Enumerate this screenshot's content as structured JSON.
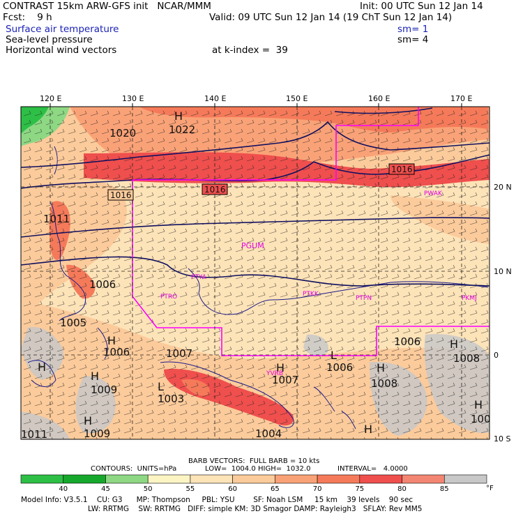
{
  "header": {
    "line1_left": "CONTRAST 15km ARW-GFS init   NCAR/MMM",
    "line1_right": "Init: 00 UTC Sun 12 Jan 14",
    "line2_left": "Fcst:    9 h",
    "line2_right": "Valid: 09 UTC Sun 12 Jan 14 (19 ChT Sun 12 Jan 14)",
    "field1": "Surface air temperature",
    "field1_sm": "sm= 1",
    "field2": "Sea-level pressure",
    "field2_sm": "sm= 4",
    "field3": "Horizontal wind vectors",
    "field3_level": "at k-index =  39"
  },
  "map": {
    "lon_labels": [
      "120 E",
      "130 E",
      "140 E",
      "150 E",
      "160 E",
      "170 E"
    ],
    "lat_labels": [
      "20 N",
      "10 N",
      "0",
      "10 S"
    ],
    "pressure_labels": [
      "1020",
      "1022",
      "1016",
      "1016",
      "1016",
      "1011",
      "1006",
      "1005",
      "1006",
      "1007",
      "1009",
      "1006",
      "1007",
      "1006",
      "1008",
      "1008",
      "1003",
      "1004",
      "1009",
      "1011",
      "100"
    ],
    "high_markers": [
      "H",
      "H",
      "H",
      "H",
      "H",
      "H",
      "H",
      "H",
      "H",
      "H"
    ],
    "low_markers": [
      "L",
      "L"
    ],
    "region_labels": [
      "PGUM",
      "PTRO",
      "PTYA",
      "PTKK",
      "PTPN",
      "PWAK",
      "PKMJ",
      "YVRB"
    ],
    "colors": {
      "region_box": "#ff00ff",
      "isobar": "#101060",
      "coast": "#1a1a8a",
      "label_box": "#000000"
    }
  },
  "footer": {
    "barb_line": "BARB VECTORS:  FULL BARB = 10 kts",
    "contours_label": "CONTOURS:  UNITS=hPa",
    "low": "LOW=  1004.0",
    "high": "HIGH=  1032.0",
    "interval": "INTERVAL=   4.0000",
    "colorbar_ticks": [
      "40",
      "45",
      "50",
      "55",
      "60",
      "65",
      "70",
      "75",
      "80",
      "85"
    ],
    "colorbar_unit": "°F",
    "colorbar_colors": [
      "#2dbf46",
      "#16a82c",
      "#8ed884",
      "#fdf4c4",
      "#fde3b8",
      "#fccb9b",
      "#faa277",
      "#f57a5a",
      "#ef4f4d",
      "#f28672",
      "#c8c8c8"
    ],
    "model_line1": "Model Info: V3.5.1    CU: G3      MP: Thompson     PBL: YSU        SF: Noah LSM     15 km    39 levels    90 sec",
    "model_line2": "LW: RRTMG    SW: RRTMG   DIFF: simple KM: 3D Smagor DAMP: Rayleigh3   SFLAY: Rev MM5"
  }
}
